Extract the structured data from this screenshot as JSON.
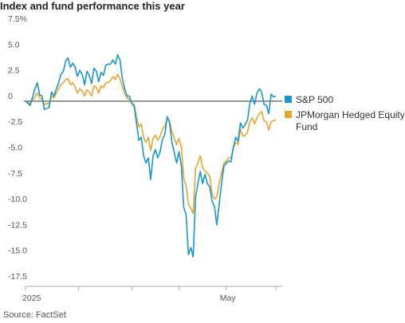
{
  "title": "Index and fund performance this year",
  "source": "Source: FactSet",
  "chart_data": {
    "type": "line",
    "ylim": [
      -17.5,
      7.5
    ],
    "yticks": [
      "7.5%",
      "5.0",
      "2.5",
      "0",
      "-2.5",
      "-5.0",
      "-7.5",
      "-10.0",
      "-12.5",
      "-15.0",
      "-17.5"
    ],
    "xticks": [
      "2025",
      "May"
    ],
    "zero_line": true,
    "legend_position": "right",
    "series": [
      {
        "name": "S&P 500",
        "color": "#1a96c9",
        "points": [
          [
            0,
            0
          ],
          [
            2,
            -0.4
          ],
          [
            4,
            1.2
          ],
          [
            5,
            1.8
          ],
          [
            6,
            0.6
          ],
          [
            7,
            0.5
          ],
          [
            8,
            -0.8
          ],
          [
            10,
            -0.6
          ],
          [
            11,
            0.9
          ],
          [
            12,
            0.5
          ],
          [
            14,
            1.8
          ],
          [
            15,
            2.6
          ],
          [
            16,
            2.9
          ],
          [
            17,
            3.9
          ],
          [
            18,
            4.2
          ],
          [
            19,
            3.3
          ],
          [
            20,
            3.7
          ],
          [
            21,
            3.3
          ],
          [
            22,
            2.4
          ],
          [
            23,
            3.0
          ],
          [
            24,
            2.6
          ],
          [
            25,
            1.6
          ],
          [
            26,
            2.9
          ],
          [
            27,
            2.5
          ],
          [
            28,
            1.7
          ],
          [
            29,
            3.2
          ],
          [
            30,
            2.9
          ],
          [
            31,
            1.9
          ],
          [
            32,
            2.8
          ],
          [
            33,
            2.5
          ],
          [
            34,
            3.5
          ],
          [
            35,
            3.6
          ],
          [
            36,
            3.6
          ],
          [
            37,
            4.0
          ],
          [
            38,
            3.6
          ],
          [
            39,
            4.5
          ],
          [
            40,
            4.0
          ],
          [
            41,
            2.2
          ],
          [
            42,
            1.2
          ],
          [
            43,
            0.5
          ],
          [
            44,
            0.5
          ],
          [
            45,
            -0.2
          ],
          [
            46,
            -0.5
          ],
          [
            47,
            -2.1
          ],
          [
            48,
            -3.8
          ],
          [
            49,
            -3.5
          ],
          [
            50,
            -5.3
          ],
          [
            51,
            -6.0
          ],
          [
            52,
            -5.5
          ],
          [
            53,
            -7.6
          ],
          [
            54,
            -5.3
          ],
          [
            55,
            -4.7
          ],
          [
            56,
            -5.5
          ],
          [
            57,
            -4.9
          ],
          [
            58,
            -3.7
          ],
          [
            59,
            -3.2
          ],
          [
            60,
            -1.5
          ],
          [
            61,
            -2.1
          ],
          [
            62,
            -4.0
          ],
          [
            63,
            -5.0
          ],
          [
            64,
            -6.0
          ],
          [
            65,
            -4.9
          ],
          [
            66,
            -6.3
          ],
          [
            67,
            -10.3
          ],
          [
            68,
            -11.0
          ],
          [
            69,
            -14.9
          ],
          [
            70,
            -14.2
          ],
          [
            71,
            -15.1
          ],
          [
            72,
            -9.3
          ],
          [
            73,
            -8.0
          ],
          [
            74,
            -6.8
          ],
          [
            75,
            -8.0
          ],
          [
            76,
            -7.1
          ],
          [
            77,
            -8.0
          ],
          [
            78,
            -8.3
          ],
          [
            79,
            -9.7
          ],
          [
            80,
            -10.2
          ],
          [
            81,
            -12.0
          ],
          [
            82,
            -10.0
          ],
          [
            83,
            -8.0
          ],
          [
            84,
            -6.3
          ],
          [
            85,
            -6.0
          ],
          [
            86,
            -5.8
          ],
          [
            87,
            -5.9
          ],
          [
            88,
            -4.5
          ],
          [
            89,
            -3.5
          ],
          [
            90,
            -3.9
          ],
          [
            91,
            -2.1
          ],
          [
            92,
            -2.6
          ],
          [
            93,
            -2.3
          ],
          [
            94,
            -1.8
          ],
          [
            95,
            -0.2
          ],
          [
            96,
            0.5
          ],
          [
            97,
            -0.3
          ],
          [
            98,
            0.8
          ],
          [
            99,
            1.2
          ],
          [
            100,
            0.9
          ],
          [
            101,
            -0.3
          ],
          [
            102,
            -0.4
          ],
          [
            103,
            -1.2
          ],
          [
            104,
            0.7
          ],
          [
            105,
            0.4
          ],
          [
            106,
            0.5
          ]
        ]
      },
      {
        "name": "JPMorgan Hedged Equity Fund",
        "color": "#e6a531",
        "points": [
          [
            0,
            0
          ],
          [
            2,
            -0.2
          ],
          [
            4,
            0.4
          ],
          [
            5,
            0.8
          ],
          [
            6,
            0.3
          ],
          [
            7,
            0.2
          ],
          [
            8,
            -0.3
          ],
          [
            10,
            -0.2
          ],
          [
            11,
            0.5
          ],
          [
            12,
            0.3
          ],
          [
            14,
            1.2
          ],
          [
            15,
            1.6
          ],
          [
            16,
            1.8
          ],
          [
            17,
            2.1
          ],
          [
            18,
            2.2
          ],
          [
            19,
            1.6
          ],
          [
            20,
            1.8
          ],
          [
            21,
            1.4
          ],
          [
            22,
            0.8
          ],
          [
            23,
            1.2
          ],
          [
            24,
            1.0
          ],
          [
            25,
            0.5
          ],
          [
            26,
            1.1
          ],
          [
            27,
            0.9
          ],
          [
            28,
            0.5
          ],
          [
            29,
            1.5
          ],
          [
            30,
            1.3
          ],
          [
            31,
            0.8
          ],
          [
            32,
            1.5
          ],
          [
            33,
            1.3
          ],
          [
            34,
            1.8
          ],
          [
            35,
            1.8
          ],
          [
            36,
            2.0
          ],
          [
            37,
            2.4
          ],
          [
            38,
            2.1
          ],
          [
            39,
            2.6
          ],
          [
            40,
            2.2
          ],
          [
            41,
            1.4
          ],
          [
            42,
            0.7
          ],
          [
            43,
            0.3
          ],
          [
            44,
            0.2
          ],
          [
            45,
            -0.2
          ],
          [
            46,
            -0.3
          ],
          [
            47,
            -1.5
          ],
          [
            48,
            -2.5
          ],
          [
            49,
            -2.2
          ],
          [
            50,
            -3.5
          ],
          [
            51,
            -4.0
          ],
          [
            52,
            -3.5
          ],
          [
            53,
            -4.8
          ],
          [
            54,
            -3.6
          ],
          [
            55,
            -3.3
          ],
          [
            56,
            -3.8
          ],
          [
            57,
            -3.4
          ],
          [
            58,
            -2.7
          ],
          [
            59,
            -2.4
          ],
          [
            60,
            -1.6
          ],
          [
            61,
            -1.9
          ],
          [
            62,
            -3.0
          ],
          [
            63,
            -3.6
          ],
          [
            64,
            -4.2
          ],
          [
            65,
            -3.6
          ],
          [
            66,
            -4.5
          ],
          [
            67,
            -7.5
          ],
          [
            68,
            -8.2
          ],
          [
            69,
            -10.0
          ],
          [
            70,
            -10.4
          ],
          [
            71,
            -10.9
          ],
          [
            72,
            -6.5
          ],
          [
            73,
            -6.0
          ],
          [
            74,
            -5.3
          ],
          [
            75,
            -6.5
          ],
          [
            76,
            -6.8
          ],
          [
            77,
            -7.0
          ],
          [
            78,
            -7.3
          ],
          [
            79,
            -9.0
          ],
          [
            80,
            -9.5
          ],
          [
            81,
            -9.3
          ],
          [
            82,
            -8.0
          ],
          [
            83,
            -7.0
          ],
          [
            84,
            -6.0
          ],
          [
            85,
            -5.8
          ],
          [
            86,
            -5.5
          ],
          [
            87,
            -5.5
          ],
          [
            88,
            -4.5
          ],
          [
            89,
            -4.0
          ],
          [
            90,
            -4.2
          ],
          [
            91,
            -2.7
          ],
          [
            92,
            -3.4
          ],
          [
            93,
            -3.3
          ],
          [
            94,
            -3.0
          ],
          [
            95,
            -2.0
          ],
          [
            96,
            -1.6
          ],
          [
            97,
            -2.2
          ],
          [
            98,
            -1.6
          ],
          [
            99,
            -1.2
          ],
          [
            100,
            -1.0
          ],
          [
            101,
            -1.9
          ],
          [
            102,
            -2.0
          ],
          [
            103,
            -2.8
          ],
          [
            104,
            -2.0
          ],
          [
            105,
            -1.9
          ],
          [
            106,
            -1.8
          ]
        ]
      }
    ]
  }
}
